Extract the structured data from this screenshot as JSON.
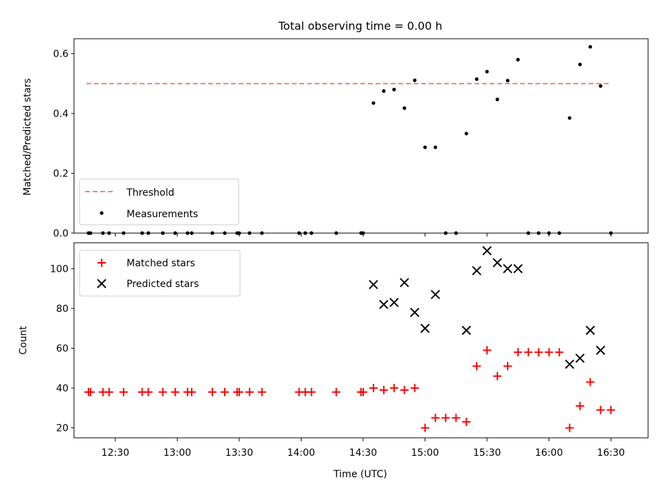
{
  "chart_data": [
    {
      "type": "scatter",
      "title": "Total observing time = 0.00 h",
      "xlabel": "",
      "ylabel": "Matched/Predicted stars",
      "ylim": [
        0,
        0.65
      ],
      "xlim": [
        "12:10",
        "16:48"
      ],
      "yticks": [
        "0.0",
        "0.2",
        "0.4",
        "0.6"
      ],
      "threshold": {
        "name": "Threshold",
        "value": 0.5,
        "x_start": "12:16",
        "x_end": "16:30",
        "color": "#F08080",
        "style": "dashed"
      },
      "series": [
        {
          "name": "Measurements",
          "color": "#000000",
          "marker": "dot",
          "points": [
            [
              "12:17",
              0
            ],
            [
              "12:18",
              0
            ],
            [
              "12:24",
              0
            ],
            [
              "12:27",
              0
            ],
            [
              "12:34",
              0
            ],
            [
              "12:43",
              0
            ],
            [
              "12:46",
              0
            ],
            [
              "12:53",
              0
            ],
            [
              "12:59",
              0
            ],
            [
              "13:05",
              0
            ],
            [
              "13:07",
              0
            ],
            [
              "13:17",
              0
            ],
            [
              "13:23",
              0
            ],
            [
              "13:29",
              0
            ],
            [
              "13:30",
              0
            ],
            [
              "13:35",
              0
            ],
            [
              "13:41",
              0
            ],
            [
              "13:59",
              0
            ],
            [
              "14:02",
              0
            ],
            [
              "14:05",
              0
            ],
            [
              "14:17",
              0
            ],
            [
              "14:29",
              0
            ],
            [
              "14:30",
              0
            ],
            [
              "14:35",
              0.435
            ],
            [
              "14:40",
              0.475
            ],
            [
              "14:45",
              0.48
            ],
            [
              "14:50",
              0.418
            ],
            [
              "14:55",
              0.511
            ],
            [
              "15:00",
              0.287
            ],
            [
              "15:05",
              0.287
            ],
            [
              "15:10",
              0
            ],
            [
              "15:15",
              0
            ],
            [
              "15:20",
              0.333
            ],
            [
              "15:25",
              0.515
            ],
            [
              "15:30",
              0.54
            ],
            [
              "15:35",
              0.447
            ],
            [
              "15:40",
              0.51
            ],
            [
              "15:45",
              0.58
            ],
            [
              "15:50",
              0
            ],
            [
              "15:55",
              0
            ],
            [
              "16:00",
              0
            ],
            [
              "16:05",
              0
            ],
            [
              "16:10",
              0.385
            ],
            [
              "16:15",
              0.564
            ],
            [
              "16:20",
              0.623
            ],
            [
              "16:25",
              0.492
            ],
            [
              "16:30",
              0
            ]
          ]
        }
      ],
      "legend": {
        "position": "lower-left",
        "entries": [
          "Threshold",
          "Measurements"
        ]
      }
    },
    {
      "type": "scatter",
      "title": "",
      "xlabel": "Time (UTC)",
      "ylabel": "Count",
      "ylim": [
        15,
        113
      ],
      "xlim": [
        "12:10",
        "16:48"
      ],
      "xticks": [
        "12:30",
        "13:00",
        "13:30",
        "14:00",
        "14:30",
        "15:00",
        "15:30",
        "16:00",
        "16:30"
      ],
      "yticks": [
        "20",
        "40",
        "60",
        "80",
        "100"
      ],
      "series": [
        {
          "name": "Matched stars",
          "color": "#FF0000",
          "marker": "plus",
          "points": [
            [
              "12:17",
              38
            ],
            [
              "12:18",
              38
            ],
            [
              "12:24",
              38
            ],
            [
              "12:27",
              38
            ],
            [
              "12:34",
              38
            ],
            [
              "12:43",
              38
            ],
            [
              "12:46",
              38
            ],
            [
              "12:53",
              38
            ],
            [
              "12:59",
              38
            ],
            [
              "13:05",
              38
            ],
            [
              "13:07",
              38
            ],
            [
              "13:17",
              38
            ],
            [
              "13:23",
              38
            ],
            [
              "13:29",
              38
            ],
            [
              "13:30",
              38
            ],
            [
              "13:35",
              38
            ],
            [
              "13:41",
              38
            ],
            [
              "13:59",
              38
            ],
            [
              "14:02",
              38
            ],
            [
              "14:05",
              38
            ],
            [
              "14:17",
              38
            ],
            [
              "14:29",
              38
            ],
            [
              "14:30",
              38
            ],
            [
              "14:35",
              40
            ],
            [
              "14:40",
              39
            ],
            [
              "14:45",
              40
            ],
            [
              "14:50",
              39
            ],
            [
              "14:55",
              40
            ],
            [
              "15:00",
              20
            ],
            [
              "15:05",
              25
            ],
            [
              "15:10",
              25
            ],
            [
              "15:15",
              25
            ],
            [
              "15:20",
              23
            ],
            [
              "15:25",
              51
            ],
            [
              "15:30",
              59
            ],
            [
              "15:35",
              46
            ],
            [
              "15:40",
              51
            ],
            [
              "15:45",
              58
            ],
            [
              "15:50",
              58
            ],
            [
              "15:55",
              58
            ],
            [
              "16:00",
              58
            ],
            [
              "16:05",
              58
            ],
            [
              "16:10",
              20
            ],
            [
              "16:15",
              31
            ],
            [
              "16:20",
              43
            ],
            [
              "16:25",
              29
            ],
            [
              "16:30",
              29
            ]
          ]
        },
        {
          "name": "Predicted stars",
          "color": "#000000",
          "marker": "x",
          "points": [
            [
              "14:35",
              92
            ],
            [
              "14:40",
              82
            ],
            [
              "14:45",
              83
            ],
            [
              "14:50",
              93
            ],
            [
              "14:55",
              78
            ],
            [
              "15:00",
              70
            ],
            [
              "15:05",
              87
            ],
            [
              "15:20",
              69
            ],
            [
              "15:25",
              99
            ],
            [
              "15:30",
              109
            ],
            [
              "15:35",
              103
            ],
            [
              "15:40",
              100
            ],
            [
              "15:45",
              100
            ],
            [
              "16:10",
              52
            ],
            [
              "16:15",
              55
            ],
            [
              "16:20",
              69
            ],
            [
              "16:25",
              59
            ]
          ]
        }
      ],
      "legend": {
        "position": "upper-left",
        "entries": [
          "Matched stars",
          "Predicted stars"
        ]
      }
    }
  ]
}
